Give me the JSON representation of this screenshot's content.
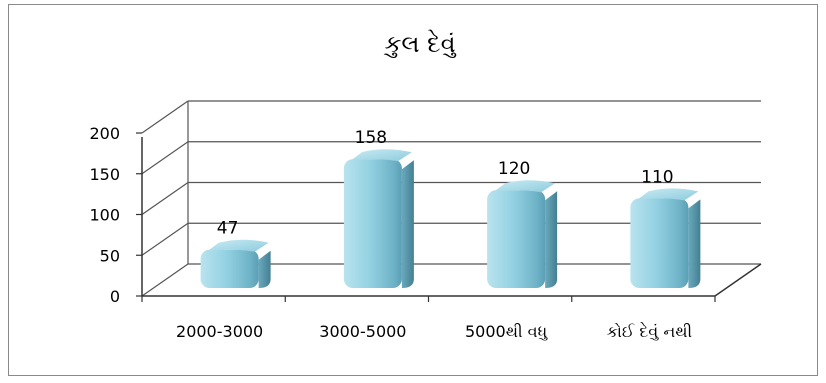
{
  "chart_data": {
    "type": "bar",
    "title": "કુલ દેવું",
    "categories": [
      "2000-3000",
      "3000-5000",
      "5000થી વધુ",
      "કોઈ દેવું નથી"
    ],
    "series": [
      {
        "values": [
          47,
          158,
          120,
          110
        ],
        "color": "#8fcfe0"
      }
    ],
    "data_labels": [
      "47",
      "158",
      "120",
      "110"
    ],
    "yticks": [
      "0",
      "50",
      "100",
      "150",
      "200"
    ],
    "ylim": [
      0,
      200
    ],
    "grid": true,
    "legend": "none",
    "style": "3d-cylinder",
    "xlabel": "",
    "ylabel": ""
  }
}
